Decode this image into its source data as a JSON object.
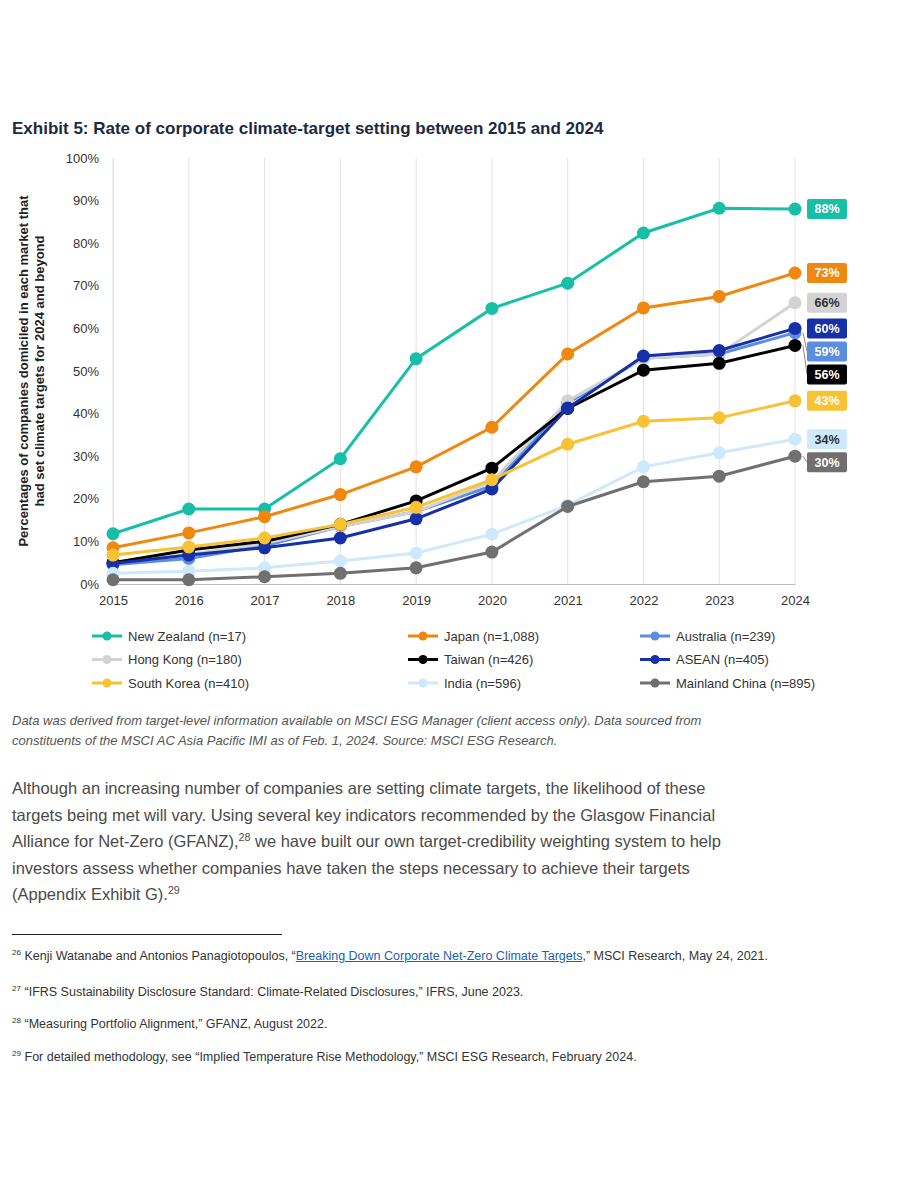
{
  "chart_data": {
    "type": "line",
    "title": "Exhibit 5: Rate of corporate climate-target setting between 2015 and 2024",
    "y_label": [
      "Percentages of companies domiciled in each market that",
      "had set climate targets for 2024 and beyond"
    ],
    "x": [
      2015,
      2016,
      2017,
      2018,
      2019,
      2020,
      2021,
      2022,
      2023,
      2024
    ],
    "xlim": [
      2015,
      2024
    ],
    "xticks": [
      2015,
      2016,
      2017,
      2018,
      2019,
      2020,
      2021,
      2022,
      2023,
      2024
    ],
    "ylim": [
      0,
      100
    ],
    "yticks": [
      {
        "value": 0,
        "label": "0%"
      },
      {
        "value": 10,
        "label": "10%"
      },
      {
        "value": 20,
        "label": "20%"
      },
      {
        "value": 30,
        "label": "30%"
      },
      {
        "value": 40,
        "label": "40%"
      },
      {
        "value": 50,
        "label": "50%"
      },
      {
        "value": 60,
        "label": "60%"
      },
      {
        "value": 70,
        "label": "70%"
      },
      {
        "value": 80,
        "label": "80%"
      },
      {
        "value": 90,
        "label": "90%"
      },
      {
        "value": 100,
        "label": "100%"
      }
    ],
    "grid": true,
    "marker": "circle",
    "series": [
      {
        "name": "New Zealand (n=17)",
        "color": "#17bfa6",
        "values": [
          11.8,
          17.6,
          17.6,
          29.4,
          52.9,
          64.7,
          70.6,
          82.4,
          88.2,
          88
        ],
        "value_labels": [
          null,
          null,
          null,
          null,
          null,
          null,
          null,
          null,
          null,
          "88%"
        ]
      },
      {
        "name": "Japan (n=1,088)",
        "color": "#f0870f",
        "values": [
          8.5,
          12,
          15.8,
          21,
          27.5,
          36.8,
          54,
          64.8,
          67.5,
          73
        ],
        "value_labels": [
          null,
          null,
          null,
          null,
          null,
          null,
          null,
          null,
          null,
          "73%"
        ]
      },
      {
        "name": "Australia (n=239)",
        "color": "#5b8de0",
        "values": [
          4.5,
          6,
          9,
          13.5,
          17,
          23,
          42.5,
          53,
          54,
          59
        ],
        "value_labels": [
          null,
          null,
          null,
          null,
          null,
          null,
          null,
          null,
          null,
          "59%"
        ]
      },
      {
        "name": "Hong Kong (n=180)",
        "color": "#d3d3d3",
        "values": [
          5,
          7,
          9.5,
          13.5,
          17,
          24,
          43,
          53,
          54,
          66
        ],
        "value_labels": [
          null,
          null,
          null,
          null,
          null,
          null,
          null,
          null,
          null,
          "66%"
        ]
      },
      {
        "name": "Taiwan (n=426)",
        "color": "#000000",
        "values": [
          5,
          8,
          10,
          14,
          19.5,
          27.2,
          41.2,
          50.2,
          51.8,
          56
        ],
        "value_labels": [
          null,
          null,
          null,
          null,
          null,
          null,
          null,
          null,
          null,
          "56%"
        ]
      },
      {
        "name": "ASEAN (n=405)",
        "color": "#1530a8",
        "values": [
          4.8,
          6.8,
          8.5,
          10.8,
          15.3,
          22.3,
          41.3,
          53.5,
          54.8,
          60
        ],
        "value_labels": [
          null,
          null,
          null,
          null,
          null,
          null,
          null,
          null,
          null,
          "60%"
        ]
      },
      {
        "name": "South Korea (n=410)",
        "color": "#f7c234",
        "values": [
          6.8,
          8.7,
          10.8,
          14,
          18,
          24.5,
          32.8,
          38.2,
          39,
          43
        ],
        "value_labels": [
          null,
          null,
          null,
          null,
          null,
          null,
          null,
          null,
          null,
          "43%"
        ]
      },
      {
        "name": "India (n=596)",
        "color": "#cde9fb",
        "values": [
          2.5,
          3,
          3.8,
          5.4,
          7.3,
          11.7,
          18.5,
          27.5,
          30.8,
          34
        ],
        "value_labels": [
          null,
          null,
          null,
          null,
          null,
          null,
          null,
          null,
          null,
          "34%"
        ]
      },
      {
        "name": "Mainland China (n=895)",
        "color": "#707070",
        "values": [
          1,
          1,
          1.7,
          2.5,
          3.8,
          7.5,
          18.2,
          24,
          25.3,
          30
        ],
        "value_labels": [
          null,
          null,
          null,
          null,
          null,
          null,
          null,
          null,
          null,
          "30%"
        ]
      }
    ]
  },
  "document": {
    "caption": [
      "Data was derived from target-level information available on MSCI ESG Manager (client access only). Data sourced from",
      "constituents of the MSCI AC Asia Pacific IMI as of Feb. 1, 2024. Source: MSCI ESG Research."
    ],
    "paragraph": [
      [
        {
          "text": "Although an increasing number of companies are setting climate targets, the likelihood of these"
        }
      ],
      [
        {
          "text": "targets being met will vary. Using several key indicators recommended by the Glasgow Financial"
        }
      ],
      [
        {
          "text": "Alliance for Net-Zero (GFANZ),"
        },
        {
          "sup": "28"
        },
        {
          "text": " we have built our own target-credibility weighting system to help"
        }
      ],
      [
        {
          "text": "investors assess whether companies have taken the steps necessary to achieve their targets"
        }
      ],
      [
        {
          "text": "(Appendix Exhibit G)."
        },
        {
          "sup": "29"
        }
      ]
    ],
    "footnotes": [
      {
        "number": "26",
        "segments": [
          {
            "text": "Kenji Watanabe and Antonios Panagiotopoulos, “"
          },
          {
            "link": "Breaking Down Corporate Net-Zero Climate Targets"
          },
          {
            "text": ",” MSCI Research, May 24, 2021."
          }
        ]
      },
      {
        "number": "27",
        "segments": [
          {
            "text": "“IFRS Sustainability Disclosure Standard: Climate-Related Disclosures,” IFRS, June 2023."
          }
        ]
      },
      {
        "number": "28",
        "segments": [
          {
            "text": "“Measuring Portfolio Alignment,” GFANZ, August 2022."
          }
        ]
      },
      {
        "number": "29",
        "segments": [
          {
            "text": "For detailed methodology, see “Implied Temperature Rise Methodology,” MSCI ESG Research, February 2024."
          }
        ]
      }
    ]
  }
}
